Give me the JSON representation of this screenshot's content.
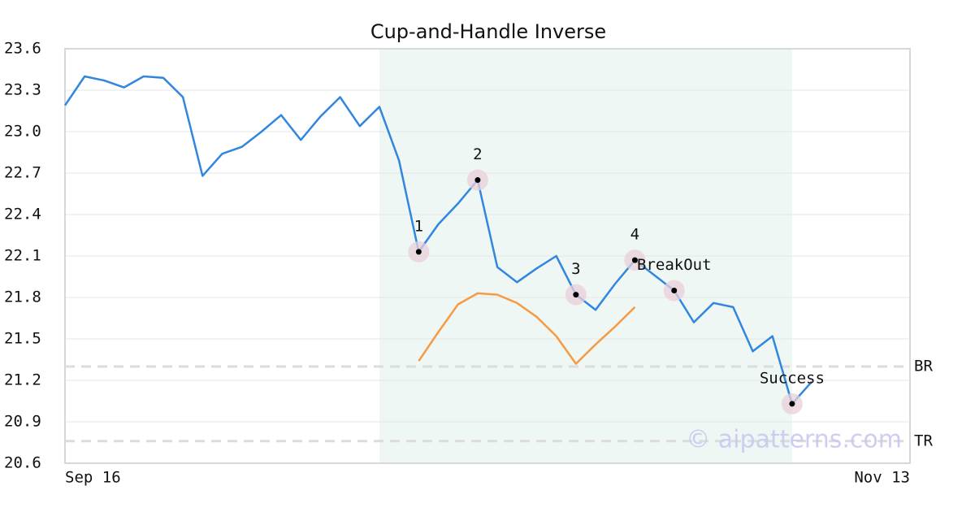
{
  "chart_data": {
    "type": "line",
    "title": "Cup-and-Handle Inverse",
    "categories": [
      "Sep 16",
      null,
      null,
      null,
      null,
      null,
      null,
      null,
      null,
      null,
      null,
      null,
      null,
      null,
      null,
      null,
      null,
      null,
      null,
      null,
      null,
      null,
      null,
      null,
      null,
      null,
      null,
      null,
      null,
      null,
      null,
      null,
      null,
      null,
      null,
      null,
      null,
      null,
      null,
      null,
      null,
      null,
      null,
      "Nov 13"
    ],
    "series": [
      {
        "color": "#3186de",
        "values": [
          23.19,
          23.4,
          23.37,
          23.32,
          23.4,
          23.39,
          23.25,
          22.68,
          22.84,
          22.89,
          23.0,
          23.12,
          22.94,
          23.11,
          23.25,
          23.04,
          23.18,
          22.79,
          22.13,
          22.33,
          22.48,
          22.65,
          22.02,
          21.91,
          22.01,
          22.1,
          21.82,
          21.71,
          21.9,
          22.07,
          21.96,
          21.85,
          21.62,
          21.76,
          21.73,
          21.41,
          21.52,
          21.03,
          21.19,
          null,
          null,
          null,
          null,
          null
        ]
      },
      {
        "color": "#f59b45",
        "values": [
          null,
          null,
          null,
          null,
          null,
          null,
          null,
          null,
          null,
          null,
          null,
          null,
          null,
          null,
          null,
          null,
          null,
          null,
          21.34,
          21.55,
          21.75,
          21.83,
          21.82,
          21.76,
          21.66,
          21.52,
          21.32,
          21.46,
          21.59,
          21.73,
          null,
          null,
          null,
          null,
          null,
          null,
          null,
          null,
          null,
          null,
          null,
          null,
          null,
          null
        ]
      }
    ],
    "points": [
      {
        "label": "1",
        "x": 18
      },
      {
        "label": "2",
        "x": 21
      },
      {
        "label": "3",
        "x": 26
      },
      {
        "label": "4",
        "x": 29
      },
      {
        "label": "BreakOut",
        "x": 31
      },
      {
        "label": "Success",
        "x": 37
      }
    ],
    "shade": [
      16,
      37
    ],
    "levels": [
      {
        "label": "BR",
        "value": 21.3
      },
      {
        "label": "TR",
        "value": 20.76
      }
    ],
    "watermark": "© aipatterns.com",
    "ylim": [
      20.6,
      23.6
    ],
    "yticks": [
      20.6,
      20.9,
      21.2,
      21.5,
      21.8,
      22.1,
      22.4,
      22.7,
      {
        "value": 23.0,
        "label": "23.0"
      },
      23.3,
      23.6
    ],
    "grid": true
  }
}
